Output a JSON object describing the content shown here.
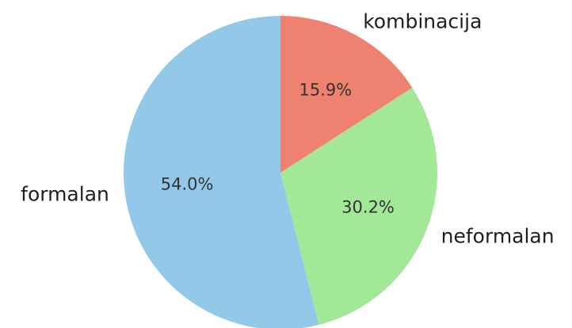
{
  "chart_data": {
    "type": "pie",
    "start_angle_deg": 90,
    "direction": "clockwise",
    "slices": [
      {
        "label": "kombinacija",
        "value": 15.9,
        "pct_label": "15.9%",
        "color": "#ef8170"
      },
      {
        "label": "neformalan",
        "value": 30.2,
        "pct_label": "30.2%",
        "color": "#a3e897"
      },
      {
        "label": "formalan",
        "value": 54.0,
        "pct_label": "54.0%",
        "color": "#92c9e8"
      }
    ]
  }
}
